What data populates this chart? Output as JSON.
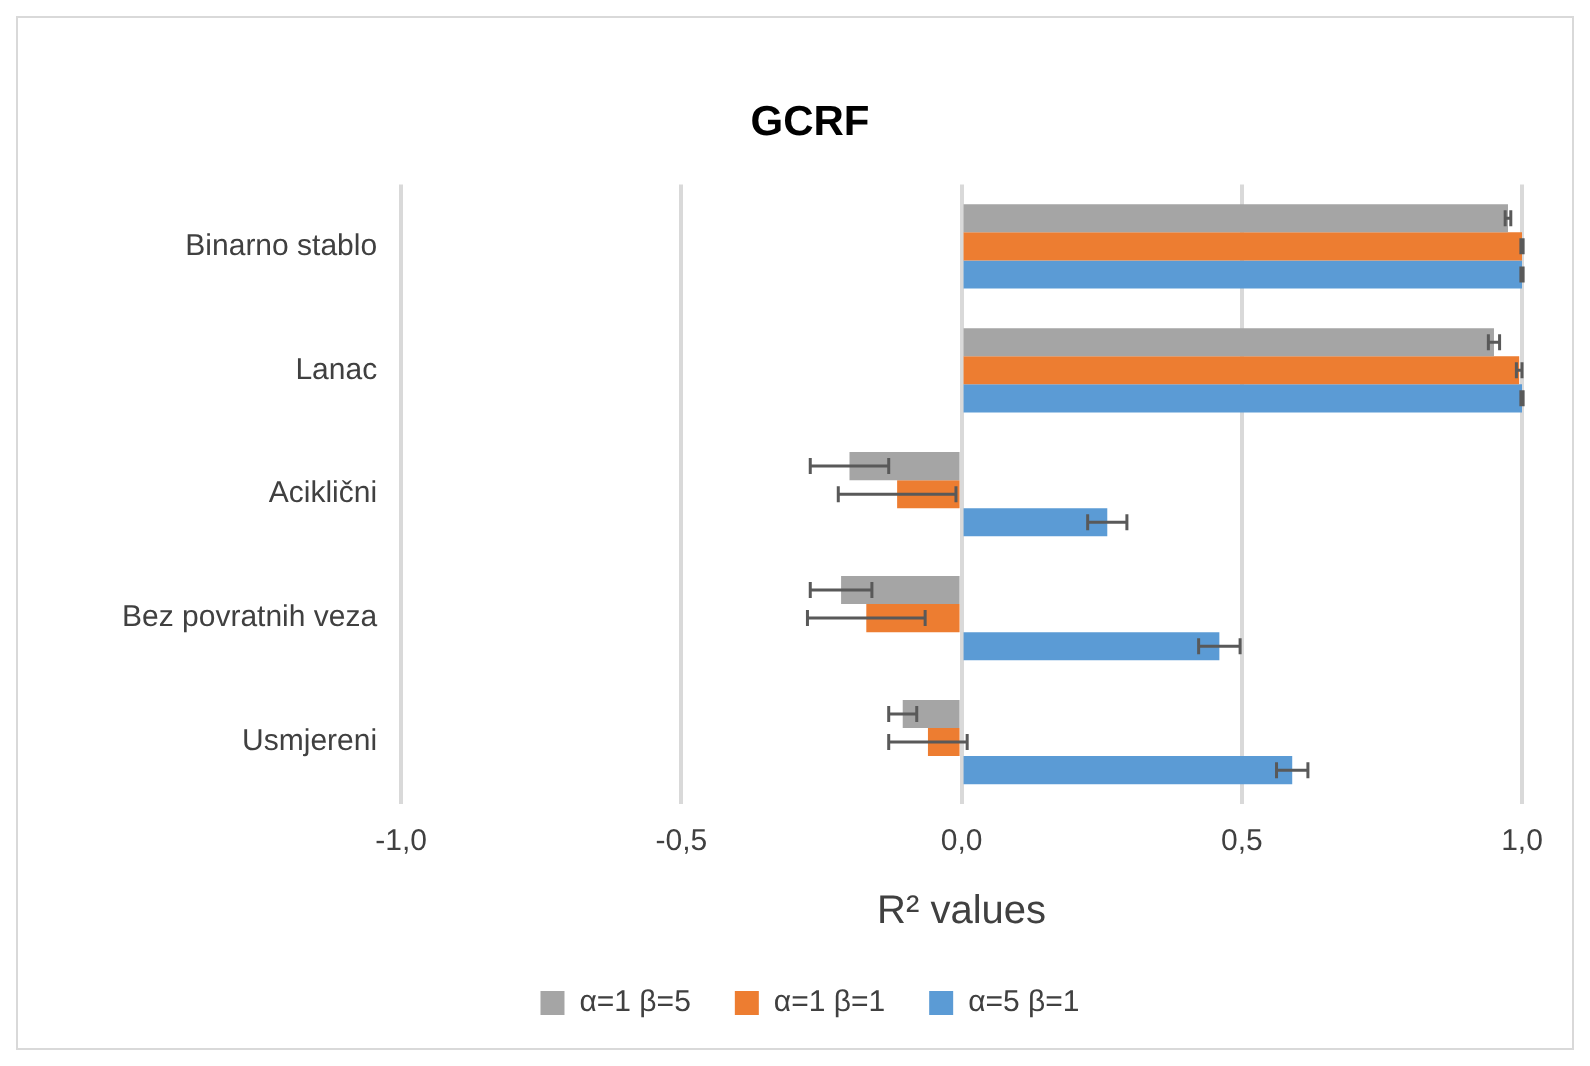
{
  "chart_data": {
    "type": "bar",
    "orientation": "horizontal",
    "title": "GCRF",
    "xlabel": "R² values",
    "categories": [
      "Binarno stablo",
      "Lanac",
      "Aciklični",
      "Bez povratnih veza",
      "Usmjereni"
    ],
    "series": [
      {
        "name": "α=1 β=5",
        "color": "#a5a5a5",
        "values": [
          0.975,
          0.95,
          -0.2,
          -0.215,
          -0.105
        ],
        "errors": [
          0.005,
          0.01,
          0.07,
          0.055,
          0.025
        ]
      },
      {
        "name": "α=1 β=1",
        "color": "#ed7d31",
        "values": [
          1.0,
          0.995,
          -0.115,
          -0.17,
          -0.06
        ],
        "errors": [
          0.002,
          0.005,
          0.105,
          0.105,
          0.07
        ]
      },
      {
        "name": "α=5 β=1",
        "color": "#5b9bd5",
        "values": [
          1.0,
          1.0,
          0.26,
          0.46,
          0.59
        ],
        "errors": [
          0.002,
          0.002,
          0.035,
          0.037,
          0.028
        ]
      }
    ],
    "xlim": [
      -1,
      1
    ],
    "xticks": [
      {
        "value": -1,
        "label": "-1,0"
      },
      {
        "value": -0.5,
        "label": "-0,5"
      },
      {
        "value": 0,
        "label": "0,0"
      },
      {
        "value": 0.5,
        "label": "0,5"
      },
      {
        "value": 1,
        "label": "1,0"
      }
    ],
    "grid": "x",
    "legend": "bottom"
  }
}
